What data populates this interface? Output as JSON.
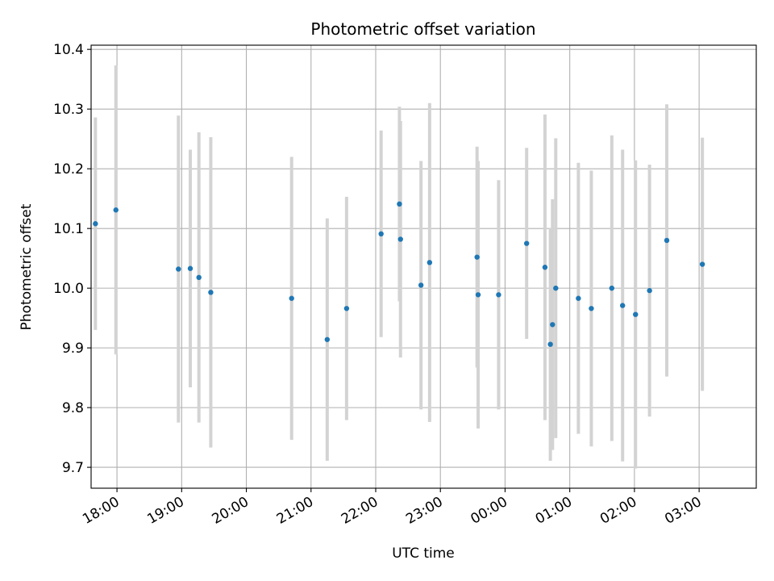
{
  "chart_data": {
    "type": "scatter",
    "title": "Photometric offset variation",
    "xlabel": "UTC time",
    "ylabel": "Photometric offset",
    "x_axis": {
      "scale": "time",
      "range": [
        "17:36",
        "03:53"
      ],
      "ticks": [
        "18:00",
        "19:00",
        "20:00",
        "21:00",
        "22:00",
        "23:00",
        "00:00",
        "01:00",
        "02:00",
        "03:00"
      ],
      "tick_label_rotation": "30 degrees"
    },
    "y_axis": {
      "range": [
        9.665,
        10.407
      ],
      "ticks": [
        "9.7",
        "9.8",
        "9.9",
        "10.0",
        "10.1",
        "10.2",
        "10.3",
        "10.4"
      ]
    },
    "grid": true,
    "series": [
      {
        "marker_color": "#1f77b4",
        "errorbar_color": "#d3d3d3",
        "points": [
          {
            "x": "17:40",
            "y": 10.108,
            "err": 0.178
          },
          {
            "x": "17:59",
            "y": 10.131,
            "err": 0.242
          },
          {
            "x": "18:57",
            "y": 10.032,
            "err": 0.257
          },
          {
            "x": "19:08",
            "y": 10.033,
            "err": 0.199
          },
          {
            "x": "19:16",
            "y": 10.018,
            "err": 0.243
          },
          {
            "x": "19:27",
            "y": 9.993,
            "err": 0.26
          },
          {
            "x": "20:42",
            "y": 9.983,
            "err": 0.237
          },
          {
            "x": "21:15",
            "y": 9.914,
            "err": 0.203
          },
          {
            "x": "21:33",
            "y": 9.966,
            "err": 0.187
          },
          {
            "x": "22:05",
            "y": 10.091,
            "err": 0.173
          },
          {
            "x": "22:22",
            "y": 10.141,
            "err": 0.163
          },
          {
            "x": "22:23",
            "y": 10.082,
            "err": 0.198
          },
          {
            "x": "22:42",
            "y": 10.005,
            "err": 0.208
          },
          {
            "x": "22:50",
            "y": 10.043,
            "err": 0.267
          },
          {
            "x": "23:34",
            "y": 10.052,
            "err": 0.185
          },
          {
            "x": "23:35",
            "y": 9.989,
            "err": 0.224
          },
          {
            "x": "23:54",
            "y": 9.989,
            "err": 0.192
          },
          {
            "x": "00:20",
            "y": 10.075,
            "err": 0.16
          },
          {
            "x": "00:37",
            "y": 10.035,
            "err": 0.256
          },
          {
            "x": "00:42",
            "y": 9.906,
            "err": 0.195
          },
          {
            "x": "00:44",
            "y": 9.939,
            "err": 0.21
          },
          {
            "x": "00:47",
            "y": 10.0,
            "err": 0.251
          },
          {
            "x": "01:08",
            "y": 9.983,
            "err": 0.227
          },
          {
            "x": "01:20",
            "y": 9.966,
            "err": 0.231
          },
          {
            "x": "01:39",
            "y": 10.0,
            "err": 0.256
          },
          {
            "x": "01:49",
            "y": 9.971,
            "err": 0.261
          },
          {
            "x": "02:01",
            "y": 9.956,
            "err": 0.258
          },
          {
            "x": "02:14",
            "y": 9.996,
            "err": 0.211
          },
          {
            "x": "02:30",
            "y": 10.08,
            "err": 0.228
          },
          {
            "x": "03:03",
            "y": 10.04,
            "err": 0.212
          }
        ]
      }
    ]
  }
}
